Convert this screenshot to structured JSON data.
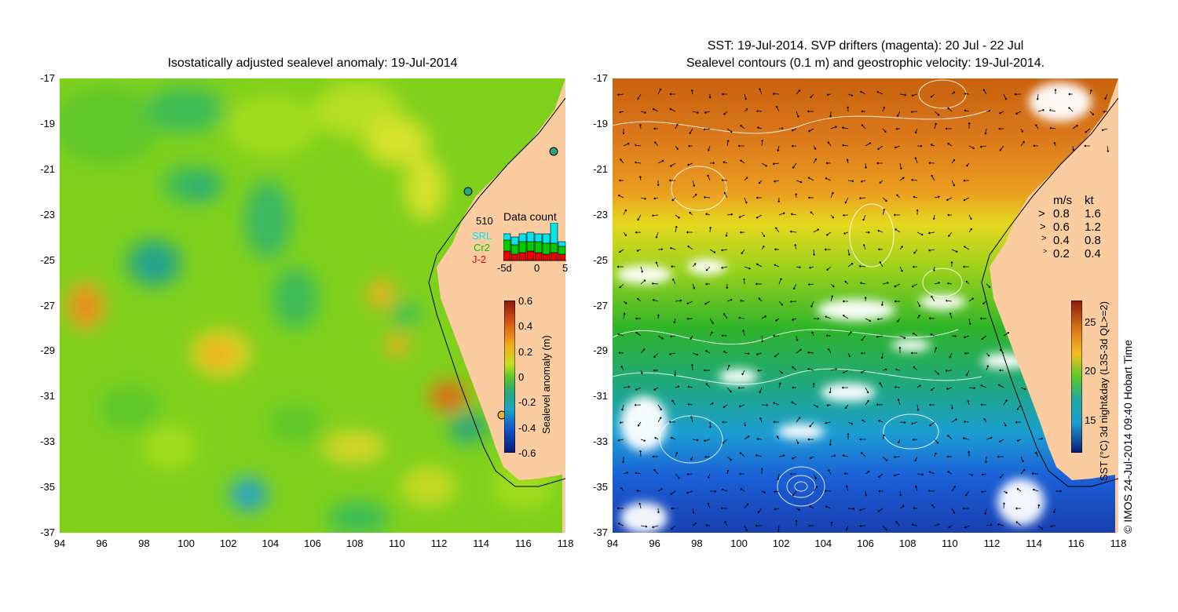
{
  "left_panel": {
    "title": "Isostatically adjusted sealevel anomaly: 19-Jul-2014",
    "x_ticks": [
      "94",
      "96",
      "98",
      "100",
      "102",
      "104",
      "106",
      "108",
      "110",
      "112",
      "114",
      "116",
      "118"
    ],
    "y_ticks": [
      "-17",
      "-19",
      "-21",
      "-23",
      "-25",
      "-27",
      "-29",
      "-31",
      "-33",
      "-35",
      "-37"
    ],
    "colorbar": {
      "label": "Sealevel anomaly (m)",
      "ticks": [
        "0.6",
        "0.4",
        "0.2",
        "0",
        "-0.2",
        "-0.4",
        "-0.6"
      ],
      "range": [
        -0.6,
        0.6
      ]
    },
    "data_count": {
      "title": "Data count",
      "max_label": "510",
      "series": [
        "SRL",
        "Cr2",
        "J-2"
      ],
      "series_colors": [
        "#00e5ee",
        "#00cc00",
        "#ee0000"
      ],
      "x_ticks": [
        "-5d",
        "0",
        "5"
      ]
    },
    "land_color": "#fbcc9f"
  },
  "right_panel": {
    "title_line1": "SST: 19-Jul-2014. SVP drifters (magenta): 20 Jul - 22 Jul",
    "title_line2": "Sealevel contours (0.1 m) and geostrophic velocity: 19-Jul-2014.",
    "x_ticks": [
      "94",
      "96",
      "98",
      "100",
      "102",
      "104",
      "106",
      "108",
      "110",
      "112",
      "114",
      "116",
      "118"
    ],
    "y_ticks": [
      "-17",
      "-19",
      "-21",
      "-23",
      "-25",
      "-27",
      "-29",
      "-31",
      "-33",
      "-35",
      "-37"
    ],
    "colorbar": {
      "label": "SST (°C) 3d night&day (L3S-3d QL>=2)",
      "ticks": [
        "25",
        "20",
        "15"
      ]
    },
    "velocity_legend": {
      "header_ms": "m/s",
      "header_kt": "kt",
      "rows": [
        {
          "ms": "0.8",
          "kt": "1.6"
        },
        {
          "ms": "0.6",
          "kt": "1.2"
        },
        {
          "ms": "0.4",
          "kt": "0.8"
        },
        {
          "ms": "0.2",
          "kt": "0.4"
        }
      ]
    },
    "credit": "© IMOS 24-Jul-2014 09:40 Hobart Time"
  }
}
